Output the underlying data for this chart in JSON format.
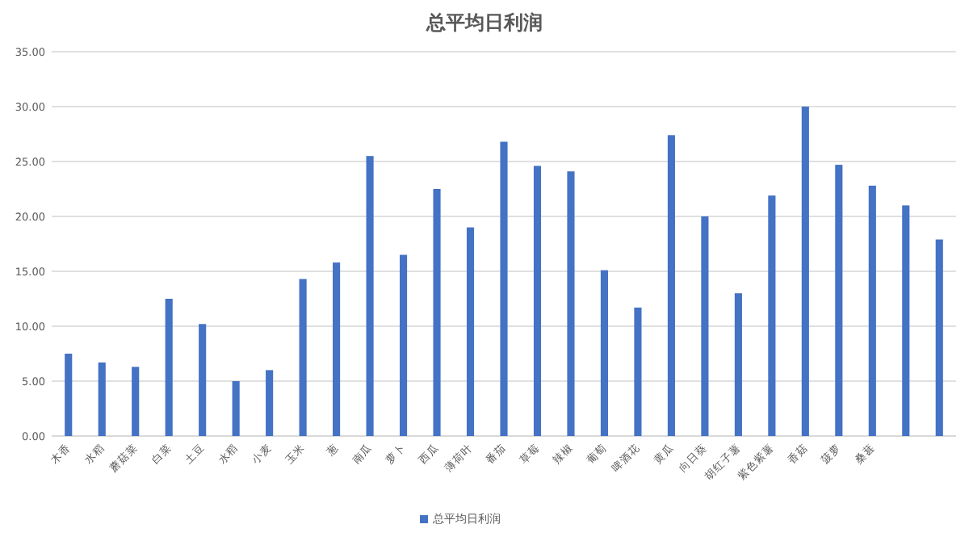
{
  "chart_data": {
    "type": "bar",
    "title": "总平均日利润",
    "categories": [
      "木香",
      "水稻",
      "蘑菇菜",
      "白菜",
      "土豆",
      "水稻",
      "小麦",
      "玉米",
      "葱",
      "南瓜",
      "萝卜",
      "西瓜",
      "薄荷叶",
      "番茄",
      "草莓",
      "辣椒",
      "葡萄",
      "啤酒花",
      "黄瓜",
      "向日葵",
      "胡红子薯",
      "紫色紫薯",
      "香菇",
      "菠萝",
      "桑葚",
      null,
      null
    ],
    "series": [
      {
        "name": "总平均日利润",
        "color": "#4472c4",
        "values": [
          7.5,
          6.7,
          6.3,
          12.5,
          10.2,
          5.0,
          6.0,
          14.3,
          15.8,
          25.5,
          16.5,
          22.5,
          19.0,
          26.8,
          24.6,
          24.1,
          15.1,
          11.7,
          27.4,
          20.0,
          13.0,
          21.9,
          30.0,
          24.7,
          22.8,
          21.0,
          17.9
        ]
      }
    ],
    "ylim": [
      0,
      35
    ],
    "yticks": [
      {
        "value": 0,
        "label": "0.00"
      },
      {
        "value": 5,
        "label": "5.00"
      },
      {
        "value": 10,
        "label": "10.00"
      },
      {
        "value": 15,
        "label": "15.00"
      },
      {
        "value": 20,
        "label": "20.00"
      },
      {
        "value": 25,
        "label": "25.00"
      },
      {
        "value": 30,
        "label": "30.00"
      },
      {
        "value": 35,
        "label": "35.00"
      }
    ],
    "grid": "y",
    "legend": "bottom"
  }
}
